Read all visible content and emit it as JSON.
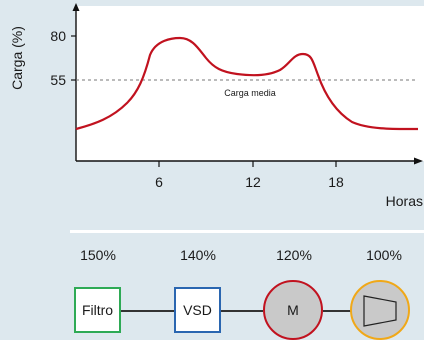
{
  "chart": {
    "y_axis_label": "Carga (%)",
    "x_axis_label": "Horas",
    "y_ticks": [
      "80",
      "55"
    ],
    "x_ticks": [
      "6",
      "12",
      "18"
    ],
    "reference_line_label": "Carga media"
  },
  "chart_data": {
    "type": "line",
    "xlabel": "Horas",
    "ylabel": "Carga (%)",
    "x_ticks": [
      6,
      12,
      18
    ],
    "y_ticks": [
      80,
      55
    ],
    "reference_line": {
      "y": 55,
      "label": "Carga media",
      "style": "dashed"
    },
    "series": [
      {
        "color": "#c1121f",
        "x": [
          0,
          2,
          3.5,
          4.5,
          5.5,
          6.5,
          7.5,
          8.5,
          9.5,
          11,
          12.5,
          14,
          15,
          16,
          16.5,
          17.5,
          18.5,
          20,
          21.5,
          22.5
        ],
        "y": [
          4,
          10,
          18,
          40,
          75,
          80,
          80,
          72,
          63,
          60,
          59,
          60,
          66,
          73,
          68,
          44,
          24,
          8,
          5,
          5
        ]
      }
    ]
  },
  "drive_chain": [
    {
      "label": "Filtro",
      "percent": "150%",
      "shape": "box",
      "border_color": "#2eaa55"
    },
    {
      "label": "VSD",
      "percent": "140%",
      "shape": "box",
      "border_color": "#2a66b0"
    },
    {
      "label": "M",
      "percent": "120%",
      "shape": "circle",
      "border_color": "#c1121f"
    },
    {
      "label": "",
      "percent": "100%",
      "shape": "circle",
      "border_color": "#f0a818",
      "icon": "pump-icon"
    }
  ]
}
